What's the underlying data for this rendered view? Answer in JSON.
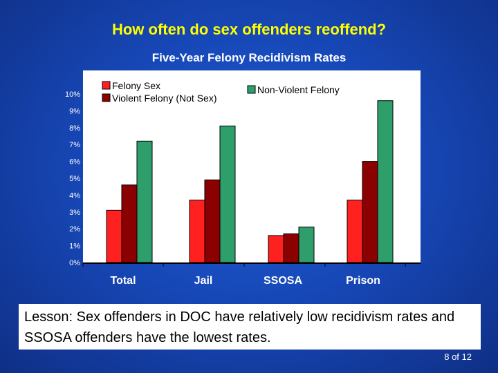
{
  "slide": {
    "title": "How often do sex offenders reoffend?",
    "lesson": "Lesson:  Sex offenders in DOC have relatively low recidivism rates and SSOSA offenders have the lowest rates.",
    "page": "8 of 12"
  },
  "chart_data": {
    "type": "bar",
    "title": "Five-Year Felony Recidivism Rates",
    "categories": [
      "Total",
      "Jail",
      "SSOSA",
      "Prison"
    ],
    "series": [
      {
        "name": "Felony Sex",
        "color": "#ff2020",
        "values": [
          3.1,
          3.7,
          1.6,
          3.7
        ]
      },
      {
        "name": "Violent Felony (Not Sex)",
        "color": "#8b0000",
        "values": [
          4.6,
          4.9,
          1.7,
          6.0
        ]
      },
      {
        "name": "Non-Violent Felony",
        "color": "#2e9e6a",
        "values": [
          7.2,
          8.1,
          2.1,
          9.6
        ]
      }
    ],
    "ylim": [
      0,
      10
    ],
    "yticks": [
      "0%",
      "1%",
      "2%",
      "3%",
      "4%",
      "5%",
      "6%",
      "7%",
      "8%",
      "9%",
      "10%"
    ],
    "xlabel": "",
    "ylabel": "",
    "grid": false,
    "legend": "top"
  }
}
